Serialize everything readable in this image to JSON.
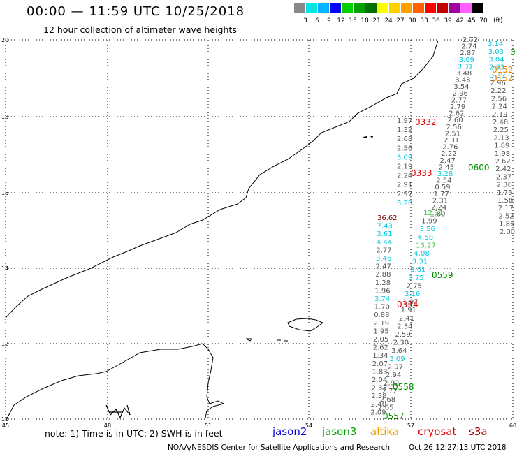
{
  "header": {
    "title": "00:00 — 11:59 UTC 10/25/2018",
    "subtitle": "12 hour collection of altimeter wave heights"
  },
  "color_scale": {
    "labels": [
      "3",
      "6",
      "9",
      "12",
      "15",
      "18",
      "21",
      "24",
      "27",
      "30",
      "33",
      "36",
      "39",
      "42",
      "45",
      "70"
    ],
    "colors": [
      "#888888",
      "#00e5e5",
      "#00b7ff",
      "#0000ff",
      "#00d000",
      "#00a000",
      "#007000",
      "#ffff00",
      "#ffd000",
      "#ffa000",
      "#ff6000",
      "#ff0000",
      "#c00000",
      "#a000a0",
      "#ff60ff",
      "#000000"
    ],
    "unit": "(ft)"
  },
  "axes": {
    "x_ticks": [
      "45",
      "48",
      "51",
      "54",
      "57",
      "60"
    ],
    "y_ticks": [
      "20",
      "18",
      "16",
      "14",
      "12",
      "10"
    ]
  },
  "tracks": [
    {
      "name": "track-a",
      "color": "#555555",
      "values": [
        "1.97",
        "1.32",
        "2.68",
        "2.56",
        "3.09",
        "2.19",
        "2.24",
        "2.91",
        "2.97",
        "3.20"
      ]
    },
    {
      "name": "track-b",
      "color": "#555555",
      "values": [
        "36.62",
        "7.43",
        "3.61",
        "4.44",
        "2.77",
        "3.46",
        "2.47",
        "2.88",
        "1.28",
        "1.96",
        "3.74",
        "1.70",
        "0.88",
        "2.19",
        "1.95",
        "2.05",
        "2.62",
        "1.34",
        "2.07",
        "1.83",
        "2.04",
        "2.33",
        "2.38",
        "2.40",
        "2.09"
      ]
    },
    {
      "name": "track-c",
      "color": "#555555",
      "values": [
        "12.11",
        "1.99",
        "3.56",
        "4.58",
        "13.27",
        "4.08",
        "3.31",
        "3.61",
        "3.75",
        "2.75",
        "3.16",
        "1.97",
        "1.91",
        "2.41",
        "2.34",
        "2.59",
        "2.30",
        "3.64",
        "3.09",
        "2.97",
        "2.94",
        "2.92",
        "2.72",
        "2.68",
        "2.65"
      ]
    },
    {
      "name": "track-d",
      "color": "#555555",
      "values": [
        "2.72",
        "2.74",
        "2.87",
        "3.09",
        "3.31",
        "3.48",
        "3.48",
        "3.54",
        "2.96",
        "2.77",
        "2.79",
        "2.62",
        "2.60",
        "2.56",
        "2.51",
        "2.31",
        "2.76",
        "2.22",
        "2.47",
        "2.45",
        "3.28",
        "2.54",
        "0.59",
        "1.77",
        "2.31",
        "2.24",
        "1.80"
      ]
    },
    {
      "name": "track-e",
      "color": "#555555",
      "values": [
        "3.14",
        "3.03",
        "3.04",
        "2.93",
        "3.39",
        "2.96",
        "2.22",
        "2.56",
        "2.24",
        "2.19",
        "2.48",
        "2.25",
        "2.13",
        "1.89",
        "1.98",
        "2.62",
        "2.42",
        "2.37",
        "2.36",
        "1.73",
        "1.58",
        "2.17",
        "2.52",
        "1.86",
        "2.00"
      ]
    }
  ],
  "track_colors": {
    "gray": "#555555",
    "cyan": "#00c8e0",
    "green": "#40c040",
    "dkgreen": "#00a000",
    "red": "#dd0000",
    "orange": "#f08000"
  },
  "time_tags": [
    {
      "text": "0332",
      "color": "#dd0000"
    },
    {
      "text": "0333",
      "color": "#dd0000"
    },
    {
      "text": "0334",
      "color": "#dd0000"
    },
    {
      "text": "0600",
      "color": "#009000"
    },
    {
      "text": "0559",
      "color": "#009000"
    },
    {
      "text": "0558",
      "color": "#009000"
    },
    {
      "text": "0557",
      "color": "#009000"
    },
    {
      "text": "0152",
      "color": "#f08000"
    },
    {
      "text": "0152",
      "color": "#f08000"
    },
    {
      "text": "0",
      "color": "#009000"
    }
  ],
  "footer": {
    "note": "note: 1) Time is in UTC; 2) SWH is in feet",
    "legend": [
      {
        "label": "jason2",
        "color": "#0000dd"
      },
      {
        "label": "jason3",
        "color": "#00a000"
      },
      {
        "label": "altika",
        "color": "#f0a000"
      },
      {
        "label": "cryosat",
        "color": "#dd0000"
      },
      {
        "label": "s3a",
        "color": "#a00000"
      }
    ],
    "credit": "NOAA/NESDIS Center for Satellite Applications and Research",
    "timestamp": "Oct 26 12:27:13 UTC 2018"
  }
}
